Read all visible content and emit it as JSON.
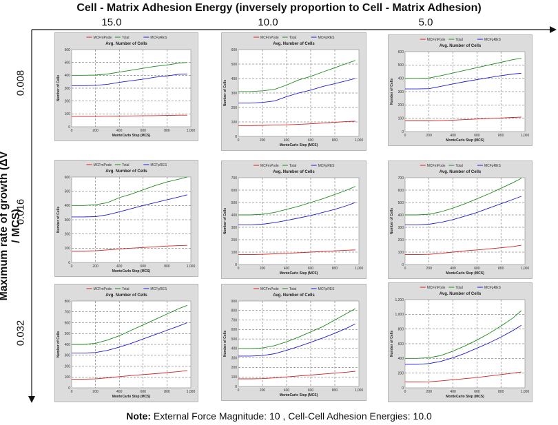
{
  "figure": {
    "top_title": "Cell - Matrix Adhesion Energy (inversely proportion to Cell - Matrix Adhesion)",
    "y_title": "Maximum rate of growth (ΔV / MCS)",
    "note_label": "Note:",
    "note_text": " External Force Magnitude: 10 , Cell-Cell Adhesion Energies: 10.0",
    "columns": [
      "15.0",
      "10.0",
      "5.0"
    ],
    "rows": [
      "0.008",
      "0.016",
      "0.032"
    ]
  },
  "series_colors": {
    "MCFmPode": "#d42020",
    "Total": "#1a8a1a",
    "MCFpRES": "#1a1ad4"
  },
  "chart_data": [
    {
      "type": "line",
      "title": "Avg. Number of Cells",
      "xlabel": "MonteCarlo Step (MCS)",
      "ylabel": "Number of Cells",
      "xlim": [
        0,
        1000
      ],
      "ylim": [
        0,
        600
      ],
      "xticks": [
        "0",
        "200",
        "400",
        "600",
        "800",
        "1,000"
      ],
      "yticks": [
        "0",
        "100",
        "200",
        "300",
        "400",
        "500",
        "600"
      ],
      "legend": [
        "MCFmPode",
        "Total",
        "MCFpRES"
      ],
      "legend_position": "top",
      "grid": true,
      "x": [
        0,
        100,
        200,
        300,
        400,
        500,
        600,
        700,
        800,
        900,
        970
      ],
      "series": [
        {
          "name": "MCFmPode",
          "values": [
            80,
            80,
            80,
            82,
            83,
            84,
            85,
            86,
            88,
            90,
            90
          ]
        },
        {
          "name": "Total",
          "values": [
            400,
            400,
            402,
            410,
            425,
            440,
            455,
            470,
            480,
            495,
            500
          ]
        },
        {
          "name": "MCFpRES",
          "values": [
            320,
            320,
            322,
            330,
            345,
            358,
            370,
            385,
            395,
            408,
            410
          ]
        }
      ]
    },
    {
      "type": "line",
      "title": "Avg. Number of Cells",
      "xlabel": "MonteCarlo Step (MCS)",
      "ylabel": "Number of Cells",
      "xlim": [
        0,
        1000
      ],
      "ylim": [
        0,
        600
      ],
      "xticks": [
        "0",
        "200",
        "400",
        "600",
        "800",
        "1,000"
      ],
      "yticks": [
        "0",
        "100",
        "200",
        "300",
        "400",
        "500",
        "600"
      ],
      "legend": [
        "MCFmPode",
        "Total",
        "MCFpRES"
      ],
      "legend_position": "top",
      "grid": true,
      "x": [
        0,
        100,
        200,
        300,
        400,
        500,
        600,
        700,
        800,
        900,
        970
      ],
      "series": [
        {
          "name": "MCFmPode",
          "values": [
            75,
            75,
            76,
            78,
            80,
            83,
            87,
            92,
            97,
            103,
            105
          ]
        },
        {
          "name": "Total",
          "values": [
            310,
            310,
            315,
            325,
            355,
            390,
            415,
            445,
            475,
            505,
            525
          ]
        },
        {
          "name": "MCFpRES",
          "values": [
            230,
            230,
            235,
            245,
            275,
            300,
            320,
            345,
            365,
            385,
            400
          ]
        }
      ]
    },
    {
      "type": "line",
      "title": "Avg. Number of Cells",
      "xlabel": "MonteCarlo Step (MCS)",
      "ylabel": "Number of Cells",
      "xlim": [
        0,
        1000
      ],
      "ylim": [
        0,
        600
      ],
      "xticks": [
        "0",
        "200",
        "400",
        "600",
        "800",
        "1,000"
      ],
      "yticks": [
        "0",
        "100",
        "200",
        "300",
        "400",
        "500",
        "600"
      ],
      "legend": [
        "MCFmPode",
        "Total",
        "MCFpRES"
      ],
      "legend_position": "top",
      "grid": true,
      "x": [
        0,
        100,
        200,
        300,
        400,
        500,
        600,
        700,
        800,
        900,
        970
      ],
      "series": [
        {
          "name": "MCFmPode",
          "values": [
            80,
            80,
            80,
            82,
            86,
            90,
            94,
            98,
            102,
            106,
            108
          ]
        },
        {
          "name": "Total",
          "values": [
            400,
            400,
            402,
            420,
            440,
            460,
            480,
            500,
            520,
            540,
            550
          ]
        },
        {
          "name": "MCFpRES",
          "values": [
            320,
            320,
            322,
            340,
            358,
            375,
            390,
            405,
            420,
            432,
            438
          ]
        }
      ]
    },
    {
      "type": "line",
      "title": "Avg. Number of Cells",
      "xlabel": "MonteCarlo Step (MCS)",
      "ylabel": "Number of Cells",
      "xlim": [
        0,
        1000
      ],
      "ylim": [
        0,
        600
      ],
      "xticks": [
        "0",
        "200",
        "400",
        "600",
        "800",
        "1,000"
      ],
      "yticks": [
        "0",
        "100",
        "200",
        "300",
        "400",
        "500",
        "600"
      ],
      "legend": [
        "MCFmPode",
        "Total",
        "MCFpRES"
      ],
      "legend_position": "top",
      "grid": true,
      "x": [
        0,
        100,
        200,
        300,
        400,
        500,
        600,
        700,
        800,
        900,
        970
      ],
      "series": [
        {
          "name": "MCFmPode",
          "values": [
            80,
            80,
            82,
            88,
            94,
            100,
            105,
            110,
            115,
            118,
            120
          ]
        },
        {
          "name": "Total",
          "values": [
            400,
            400,
            405,
            420,
            455,
            480,
            510,
            540,
            565,
            585,
            600
          ]
        },
        {
          "name": "MCFpRES",
          "values": [
            320,
            320,
            322,
            335,
            355,
            378,
            400,
            420,
            440,
            460,
            475
          ]
        }
      ]
    },
    {
      "type": "line",
      "title": "Avg. Number of Cells",
      "xlabel": "MonteCarlo Step (MCS)",
      "ylabel": "Number of Cells",
      "xlim": [
        0,
        1000
      ],
      "ylim": [
        0,
        700
      ],
      "xticks": [
        "0",
        "200",
        "400",
        "600",
        "800",
        "1,000"
      ],
      "yticks": [
        "0",
        "100",
        "200",
        "300",
        "400",
        "500",
        "600",
        "700"
      ],
      "legend": [
        "MCFmPode",
        "Total",
        "MCFpRES"
      ],
      "legend_position": "top",
      "grid": true,
      "x": [
        0,
        100,
        200,
        300,
        400,
        500,
        600,
        700,
        800,
        900,
        970
      ],
      "series": [
        {
          "name": "MCFmPode",
          "values": [
            80,
            80,
            82,
            86,
            90,
            95,
            100,
            105,
            110,
            115,
            118
          ]
        },
        {
          "name": "Total",
          "values": [
            400,
            400,
            405,
            420,
            445,
            470,
            500,
            530,
            565,
            600,
            630
          ]
        },
        {
          "name": "MCFpRES",
          "values": [
            320,
            320,
            325,
            338,
            355,
            375,
            395,
            420,
            445,
            475,
            500
          ]
        }
      ]
    },
    {
      "type": "line",
      "title": "Avg. Number of Cells",
      "xlabel": "MonteCarlo Step (MCS)",
      "ylabel": "Number of Cells",
      "xlim": [
        0,
        1000
      ],
      "ylim": [
        0,
        700
      ],
      "xticks": [
        "0",
        "200",
        "400",
        "600",
        "800",
        "1,000"
      ],
      "yticks": [
        "0",
        "100",
        "200",
        "300",
        "400",
        "500",
        "600",
        "700"
      ],
      "legend": [
        "MCFmPode",
        "Total",
        "MCFpRES"
      ],
      "legend_position": "top",
      "grid": true,
      "x": [
        0,
        100,
        200,
        300,
        400,
        500,
        600,
        700,
        800,
        900,
        970
      ],
      "series": [
        {
          "name": "MCFmPode",
          "values": [
            80,
            80,
            82,
            90,
            100,
            110,
            118,
            126,
            135,
            145,
            155
          ]
        },
        {
          "name": "Total",
          "values": [
            400,
            400,
            405,
            425,
            455,
            490,
            530,
            570,
            615,
            660,
            695
          ]
        },
        {
          "name": "MCFpRES",
          "values": [
            320,
            320,
            325,
            340,
            362,
            390,
            420,
            455,
            490,
            525,
            550
          ]
        }
      ]
    },
    {
      "type": "line",
      "title": "Avg. Number of Cells",
      "xlabel": "MonteCarlo Step (MCS)",
      "ylabel": "Number of Cells",
      "xlim": [
        0,
        1000
      ],
      "ylim": [
        0,
        800
      ],
      "xticks": [
        "0",
        "200",
        "400",
        "600",
        "800",
        "1,000"
      ],
      "yticks": [
        "0",
        "100",
        "200",
        "300",
        "400",
        "500",
        "600",
        "700",
        "800"
      ],
      "legend": [
        "MCFmPode",
        "Total",
        "MCFpRES"
      ],
      "legend_position": "top",
      "grid": true,
      "x": [
        0,
        100,
        200,
        300,
        400,
        500,
        600,
        700,
        800,
        900,
        970
      ],
      "series": [
        {
          "name": "MCFmPode",
          "values": [
            80,
            80,
            82,
            92,
            103,
            113,
            122,
            130,
            140,
            150,
            160
          ]
        },
        {
          "name": "Total",
          "values": [
            400,
            400,
            410,
            440,
            480,
            530,
            580,
            630,
            680,
            730,
            760
          ]
        },
        {
          "name": "MCFpRES",
          "values": [
            320,
            320,
            325,
            345,
            375,
            410,
            450,
            490,
            530,
            570,
            600
          ]
        }
      ]
    },
    {
      "type": "line",
      "title": "Avg. Number of Cells",
      "xlabel": "MonteCarlo Step (MCS)",
      "ylabel": "Number of Cells",
      "xlim": [
        0,
        1000
      ],
      "ylim": [
        0,
        900
      ],
      "xticks": [
        "0",
        "200",
        "400",
        "600",
        "800",
        "1,000"
      ],
      "yticks": [
        "0",
        "100",
        "200",
        "300",
        "400",
        "500",
        "600",
        "700",
        "800",
        "900"
      ],
      "legend": [
        "MCFmPode",
        "Total",
        "MCFpRES"
      ],
      "legend_position": "top",
      "grid": true,
      "x": [
        0,
        100,
        200,
        300,
        400,
        500,
        600,
        700,
        800,
        900,
        970
      ],
      "series": [
        {
          "name": "MCFmPode",
          "values": [
            80,
            80,
            82,
            90,
            100,
            110,
            120,
            130,
            140,
            150,
            160
          ]
        },
        {
          "name": "Total",
          "values": [
            400,
            400,
            405,
            430,
            470,
            520,
            575,
            630,
            700,
            770,
            820
          ]
        },
        {
          "name": "MCFpRES",
          "values": [
            320,
            320,
            325,
            345,
            380,
            420,
            465,
            510,
            560,
            615,
            660
          ]
        }
      ]
    },
    {
      "type": "line",
      "title": "Avg. Number of Cells",
      "xlabel": "MonteCarlo Step (MCS)",
      "ylabel": "Number of Cells",
      "xlim": [
        0,
        1000
      ],
      "ylim": [
        0,
        1200
      ],
      "xticks": [
        "0",
        "200",
        "400",
        "600",
        "800",
        "1,000"
      ],
      "yticks": [
        "0",
        "200",
        "400",
        "600",
        "800",
        "1,000",
        "1,200"
      ],
      "legend": [
        "MCFmPode",
        "Total",
        "MCFpRES"
      ],
      "legend_position": "top",
      "grid": true,
      "x": [
        0,
        100,
        200,
        300,
        400,
        500,
        600,
        700,
        800,
        900,
        970
      ],
      "series": [
        {
          "name": "MCFmPode",
          "values": [
            80,
            80,
            82,
            95,
            110,
            125,
            140,
            160,
            180,
            200,
            215
          ]
        },
        {
          "name": "Total",
          "values": [
            400,
            400,
            410,
            440,
            500,
            570,
            650,
            740,
            840,
            950,
            1050
          ]
        },
        {
          "name": "MCFpRES",
          "values": [
            320,
            320,
            330,
            360,
            410,
            470,
            540,
            610,
            690,
            780,
            850
          ]
        }
      ]
    }
  ]
}
